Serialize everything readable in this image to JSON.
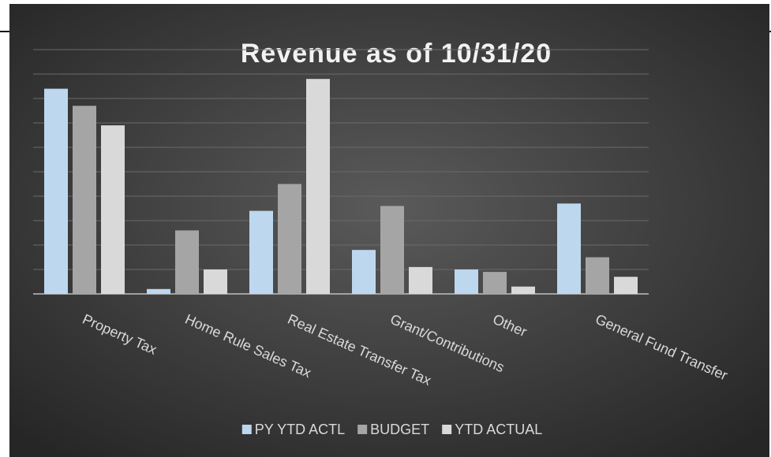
{
  "chart_data": {
    "type": "bar",
    "title": "Revenue as of 10/31/20",
    "categories": [
      "Property Tax",
      "Home Rule Sales Tax",
      "Real Estate Transfer Tax",
      "Grant/Contributions",
      "Other",
      "General Fund Transfer"
    ],
    "series": [
      {
        "name": "PY YTD ACTL",
        "color": "#bdd7ee",
        "values": [
          8.4,
          0.2,
          3.4,
          1.8,
          1.0,
          3.7
        ]
      },
      {
        "name": "BUDGET",
        "color": "#a5a5a5",
        "values": [
          7.7,
          2.6,
          4.5,
          3.6,
          0.9,
          1.5
        ]
      },
      {
        "name": "YTD ACTUAL",
        "color": "#d9d9d9",
        "values": [
          6.9,
          1.0,
          8.8,
          1.1,
          0.3,
          0.7
        ]
      }
    ],
    "ylim": [
      0,
      10
    ],
    "yticks": [
      0,
      1,
      2,
      3,
      4,
      5,
      6,
      7,
      8,
      9,
      10
    ],
    "grid": true,
    "ytick_labels": false,
    "legend": "bottom"
  }
}
